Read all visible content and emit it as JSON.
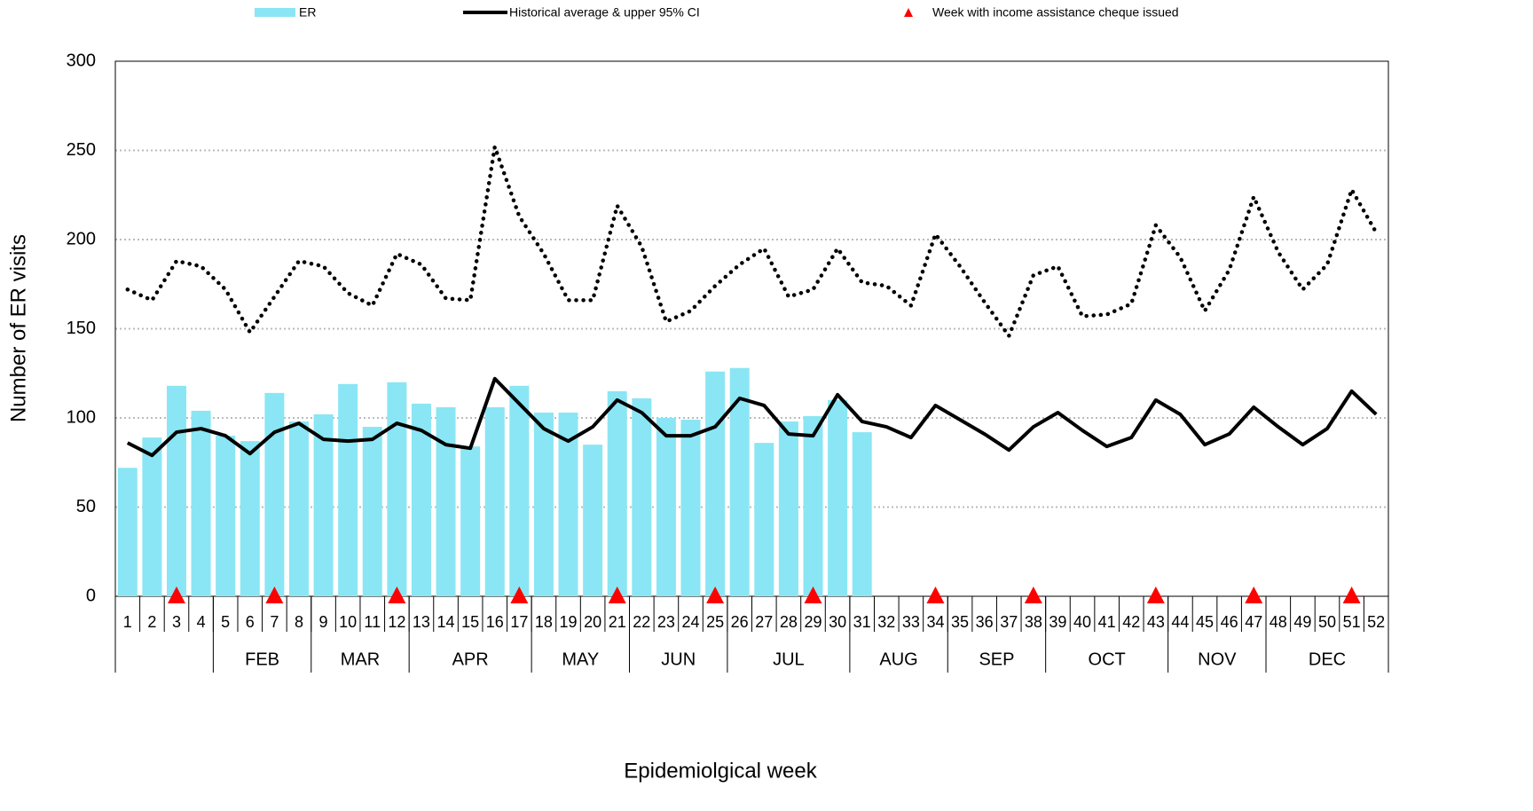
{
  "chart_data": {
    "type": "bar",
    "y_axis_label": "Number of ER visits",
    "x_axis_label": "Epidemiolgical week",
    "categories": [
      "1",
      "2",
      "3",
      "4",
      "5",
      "6",
      "7",
      "8",
      "9",
      "10",
      "11",
      "12",
      "13",
      "14",
      "15",
      "16",
      "17",
      "18",
      "19",
      "20",
      "21",
      "22",
      "23",
      "24",
      "25",
      "26",
      "27",
      "28",
      "29",
      "30",
      "31",
      "32",
      "33",
      "34",
      "35",
      "36",
      "37",
      "38",
      "39",
      "40",
      "41",
      "42",
      "43",
      "44",
      "45",
      "46",
      "47",
      "48",
      "49",
      "50",
      "51",
      "52"
    ],
    "months": [
      null,
      null,
      null,
      null,
      "FEB",
      "FEB",
      "FEB",
      "FEB",
      "MAR",
      "MAR",
      "MAR",
      "MAR",
      "APR",
      "APR",
      "APR",
      "APR",
      "APR",
      "MAY",
      "MAY",
      "MAY",
      "MAY",
      "JUN",
      "JUN",
      "JUN",
      "JUN",
      "JUL",
      "JUL",
      "JUL",
      "JUL",
      "JUL",
      "AUG",
      "AUG",
      "AUG",
      "AUG",
      "SEP",
      "SEP",
      "SEP",
      "SEP",
      "OCT",
      "OCT",
      "OCT",
      "OCT",
      "OCT",
      "NOV",
      "NOV",
      "NOV",
      "NOV",
      "DEC",
      "DEC",
      "DEC",
      "DEC",
      "DEC"
    ],
    "series": [
      {
        "name": "ER",
        "kind": "bar",
        "color": "#8ae6f4",
        "values": [
          72,
          89,
          118,
          104,
          90,
          87,
          114,
          98,
          102,
          119,
          95,
          120,
          108,
          106,
          84,
          106,
          118,
          103,
          103,
          85,
          115,
          111,
          100,
          99,
          126,
          128,
          86,
          98,
          101,
          110,
          92,
          null,
          null,
          null,
          null,
          null,
          null,
          null,
          null,
          null,
          null,
          null,
          null,
          null,
          null,
          null,
          null,
          null,
          null,
          null,
          null,
          null
        ]
      },
      {
        "name": "Historical average & upper 95% CI",
        "kind": "line",
        "color": "#000000",
        "values": [
          86,
          79,
          92,
          94,
          90,
          80,
          92,
          97,
          88,
          87,
          88,
          97,
          93,
          85,
          83,
          122,
          108,
          94,
          87,
          95,
          110,
          103,
          90,
          90,
          95,
          111,
          107,
          91,
          90,
          113,
          98,
          95,
          89,
          107,
          99,
          91,
          82,
          95,
          103,
          93,
          84,
          89,
          110,
          102,
          85,
          91,
          106,
          95,
          85,
          94,
          115,
          102
        ]
      },
      {
        "kind": "dotted",
        "color": "#000000",
        "values": [
          172,
          166,
          188,
          185,
          172,
          148,
          168,
          188,
          185,
          170,
          163,
          192,
          186,
          167,
          166,
          252,
          213,
          192,
          166,
          166,
          219,
          196,
          154,
          160,
          174,
          186,
          195,
          168,
          172,
          195,
          176,
          174,
          163,
          203,
          185,
          165,
          146,
          180,
          185,
          157,
          158,
          164,
          208,
          190,
          160,
          183,
          224,
          193,
          172,
          186,
          228,
          204
        ]
      }
    ],
    "cheque_legend": "Week with income assistance cheque issued",
    "cheque_color": "#ff0000",
    "cheque_weeks": [
      3,
      7,
      12,
      17,
      21,
      25,
      29,
      34,
      38,
      43,
      47,
      51
    ],
    "ylim": [
      0,
      300
    ],
    "yticks": [
      0,
      50,
      100,
      150,
      200,
      250,
      300
    ],
    "grid": true
  }
}
